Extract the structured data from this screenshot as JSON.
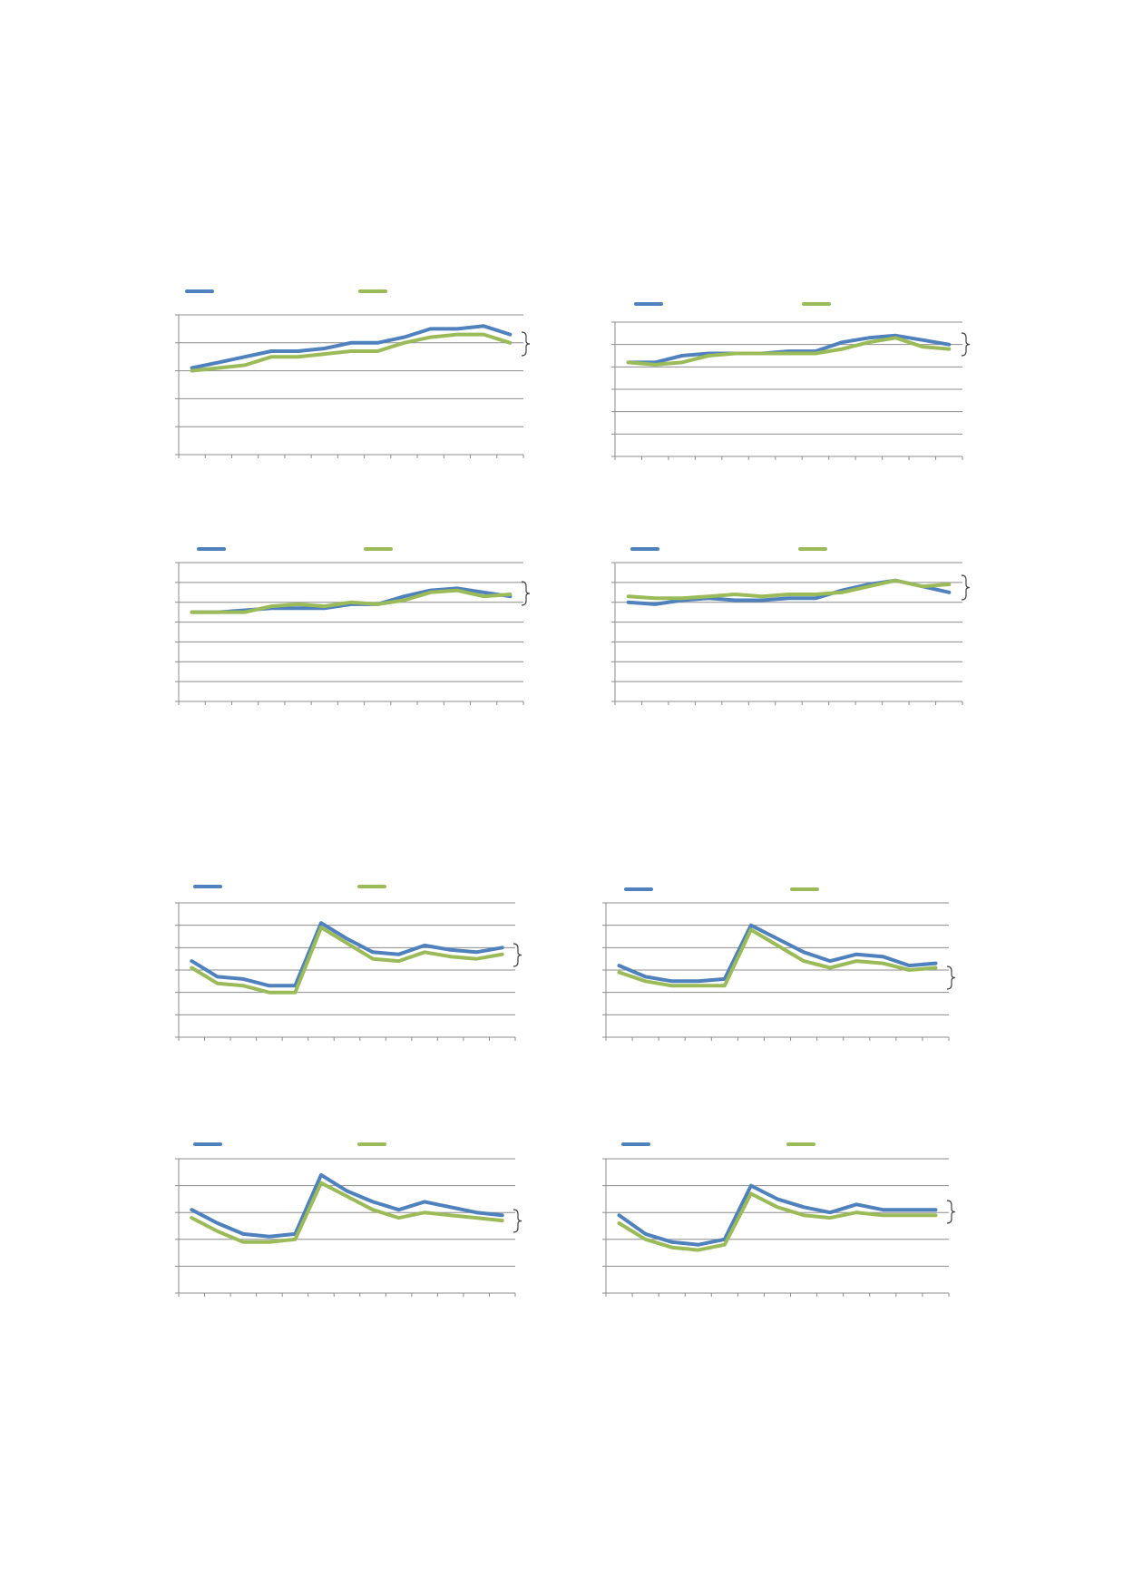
{
  "colors": {
    "series_a": "#4F81BD",
    "series_b": "#9BBB59",
    "grid": "#8C8C8C",
    "axis": "#8C8C8C",
    "brace": "#404040"
  },
  "chart_data": [
    {
      "type": "line",
      "grid": true,
      "legend": "top-left",
      "ylim": [
        0,
        5
      ],
      "y_gridlines": 5,
      "x_count": 13,
      "series": [
        {
          "values": [
            3.1,
            3.3,
            3.5,
            3.7,
            3.7,
            3.8,
            4.0,
            4.0,
            4.2,
            4.5,
            4.5,
            4.6,
            4.3
          ]
        },
        {
          "values": [
            3.0,
            3.1,
            3.2,
            3.5,
            3.5,
            3.6,
            3.7,
            3.7,
            4.0,
            4.2,
            4.3,
            4.3,
            4.0
          ]
        }
      ]
    },
    {
      "type": "line",
      "grid": true,
      "legend": "top-left",
      "ylim": [
        0,
        6
      ],
      "y_gridlines": 6,
      "x_count": 13,
      "series": [
        {
          "values": [
            4.2,
            4.2,
            4.5,
            4.6,
            4.6,
            4.6,
            4.7,
            4.7,
            5.1,
            5.3,
            5.4,
            5.2,
            5.0
          ]
        },
        {
          "values": [
            4.2,
            4.1,
            4.2,
            4.5,
            4.6,
            4.6,
            4.6,
            4.6,
            4.8,
            5.1,
            5.3,
            4.9,
            4.8
          ]
        }
      ]
    },
    {
      "type": "line",
      "grid": true,
      "legend": "top-left",
      "ylim": [
        0,
        7
      ],
      "y_gridlines": 7,
      "x_count": 13,
      "series": [
        {
          "values": [
            4.5,
            4.5,
            4.6,
            4.7,
            4.7,
            4.7,
            4.9,
            4.9,
            5.3,
            5.6,
            5.7,
            5.5,
            5.3
          ]
        },
        {
          "values": [
            4.5,
            4.5,
            4.5,
            4.8,
            4.9,
            4.8,
            5.0,
            4.9,
            5.1,
            5.5,
            5.6,
            5.3,
            5.4
          ]
        }
      ]
    },
    {
      "type": "line",
      "grid": true,
      "legend": "top-left",
      "ylim": [
        0,
        7
      ],
      "y_gridlines": 7,
      "x_count": 13,
      "series": [
        {
          "values": [
            5.0,
            4.9,
            5.1,
            5.2,
            5.1,
            5.1,
            5.2,
            5.2,
            5.6,
            5.9,
            6.1,
            5.8,
            5.5
          ]
        },
        {
          "values": [
            5.3,
            5.2,
            5.2,
            5.3,
            5.4,
            5.3,
            5.4,
            5.4,
            5.5,
            5.8,
            6.1,
            5.8,
            5.9
          ]
        }
      ]
    },
    {
      "type": "line",
      "grid": true,
      "legend": "top-left",
      "ylim": [
        0,
        6
      ],
      "y_gridlines": 6,
      "x_count": 13,
      "series": [
        {
          "values": [
            3.4,
            2.7,
            2.6,
            2.3,
            2.3,
            5.1,
            4.4,
            3.8,
            3.7,
            4.1,
            3.9,
            3.8,
            4.0
          ]
        },
        {
          "values": [
            3.1,
            2.4,
            2.3,
            2.0,
            2.0,
            4.9,
            4.2,
            3.5,
            3.4,
            3.8,
            3.6,
            3.5,
            3.7
          ]
        }
      ]
    },
    {
      "type": "line",
      "grid": true,
      "legend": "top-left",
      "ylim": [
        0,
        6
      ],
      "y_gridlines": 6,
      "x_count": 13,
      "series": [
        {
          "values": [
            3.2,
            2.7,
            2.5,
            2.5,
            2.6,
            5.0,
            4.4,
            3.8,
            3.4,
            3.7,
            3.6,
            3.2,
            3.3
          ]
        },
        {
          "values": [
            2.9,
            2.5,
            2.3,
            2.3,
            2.3,
            4.8,
            4.1,
            3.4,
            3.1,
            3.4,
            3.3,
            3.0,
            3.1
          ]
        }
      ]
    },
    {
      "type": "line",
      "grid": true,
      "legend": "top-left",
      "ylim": [
        0,
        5
      ],
      "y_gridlines": 5,
      "x_count": 13,
      "series": [
        {
          "values": [
            3.1,
            2.6,
            2.2,
            2.1,
            2.2,
            4.4,
            3.8,
            3.4,
            3.1,
            3.4,
            3.2,
            3.0,
            2.9
          ]
        },
        {
          "values": [
            2.8,
            2.3,
            1.9,
            1.9,
            2.0,
            4.1,
            3.6,
            3.1,
            2.8,
            3.0,
            2.9,
            2.8,
            2.7
          ]
        }
      ]
    },
    {
      "type": "line",
      "grid": true,
      "legend": "top-left",
      "ylim": [
        0,
        5
      ],
      "y_gridlines": 5,
      "x_count": 13,
      "series": [
        {
          "values": [
            2.9,
            2.2,
            1.9,
            1.8,
            2.0,
            4.0,
            3.5,
            3.2,
            3.0,
            3.3,
            3.1,
            3.1,
            3.1
          ]
        },
        {
          "values": [
            2.6,
            2.0,
            1.7,
            1.6,
            1.8,
            3.7,
            3.2,
            2.9,
            2.8,
            3.0,
            2.9,
            2.9,
            2.9
          ]
        }
      ]
    }
  ]
}
